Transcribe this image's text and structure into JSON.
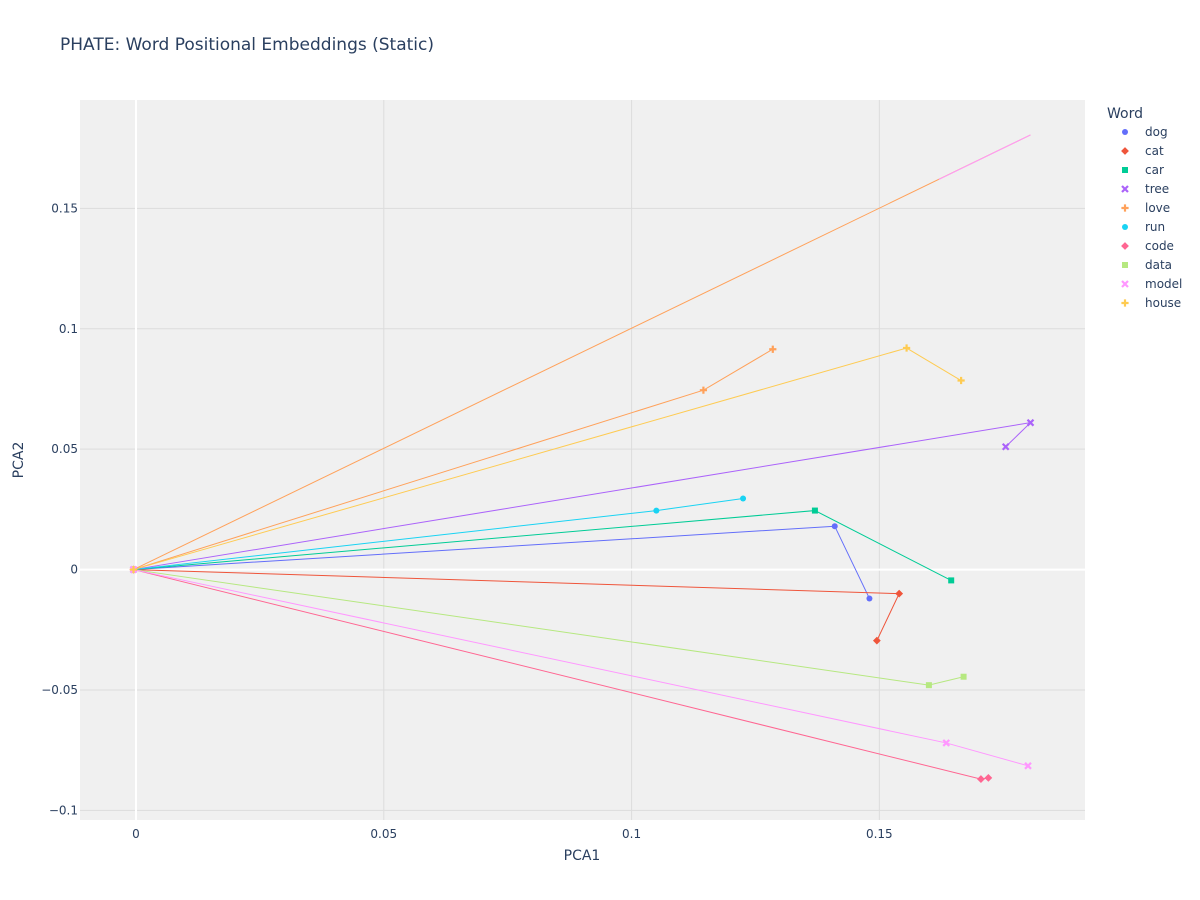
{
  "chart_data": {
    "type": "scatter",
    "title": "PHATE: Word Positional Embeddings (Static)",
    "xlabel": "PCA1",
    "ylabel": "PCA2",
    "xlim": [
      -0.0113,
      0.1915
    ],
    "ylim": [
      -0.104,
      0.195
    ],
    "xticks": [
      0,
      0.05,
      0.1,
      0.15
    ],
    "xtick_labels": [
      "0",
      "0.05",
      "0.1",
      "0.15"
    ],
    "yticks": [
      -0.1,
      -0.05,
      0,
      0.05,
      0.1,
      0.15
    ],
    "ytick_labels": [
      "−0.1",
      "−0.05",
      "0",
      "0.05",
      "0.1",
      "0.15"
    ],
    "grid": true,
    "legend": {
      "title": "Word",
      "placement": "right"
    },
    "series": [
      {
        "name": "dog",
        "color": "#636efa",
        "symbol": "circle",
        "points": [
          [
            -0.0005,
            0
          ],
          [
            0.141,
            0.018
          ],
          [
            0.148,
            -0.012
          ]
        ]
      },
      {
        "name": "cat",
        "color": "#EF553B",
        "symbol": "diamond",
        "points": [
          [
            -0.0005,
            0
          ],
          [
            0.154,
            -0.01
          ],
          [
            0.1495,
            -0.0295
          ]
        ]
      },
      {
        "name": "car",
        "color": "#00cc96",
        "symbol": "square",
        "points": [
          [
            -0.0005,
            0
          ],
          [
            0.137,
            0.0245
          ],
          [
            0.1645,
            -0.0045
          ]
        ]
      },
      {
        "name": "tree",
        "color": "#ab63fa",
        "symbol": "x",
        "points": [
          [
            -0.0005,
            0
          ],
          [
            0.1805,
            0.061
          ],
          [
            0.1755,
            0.051
          ]
        ]
      },
      {
        "name": "love",
        "color": "#FFA15A",
        "symbol": "cross",
        "points": [
          [
            -0.0005,
            0
          ],
          [
            0.1145,
            0.0745
          ],
          [
            0.1285,
            0.0915
          ]
        ]
      },
      {
        "name": "run",
        "color": "#19d3f3",
        "symbol": "circle",
        "points": [
          [
            -0.0005,
            0
          ],
          [
            0.105,
            0.0245
          ],
          [
            0.1225,
            0.0295
          ]
        ]
      },
      {
        "name": "code",
        "color": "#FF6692",
        "symbol": "diamond",
        "points": [
          [
            -0.0005,
            0
          ],
          [
            0.1705,
            -0.087
          ],
          [
            0.172,
            -0.0865
          ]
        ]
      },
      {
        "name": "data",
        "color": "#B6E880",
        "symbol": "square",
        "points": [
          [
            -0.0005,
            0
          ],
          [
            0.16,
            -0.048
          ],
          [
            0.167,
            -0.0445
          ]
        ]
      },
      {
        "name": "model",
        "color": "#FF97FF",
        "symbol": "x",
        "points": [
          [
            -0.0005,
            0
          ],
          [
            0.1635,
            -0.072
          ],
          [
            0.18,
            -0.0815
          ]
        ]
      },
      {
        "name": "house",
        "color": "#FECB52",
        "symbol": "cross",
        "points": [
          [
            -0.0005,
            0
          ],
          [
            0.1555,
            0.092
          ],
          [
            0.1665,
            0.0785
          ]
        ]
      }
    ],
    "extra_lines": [
      {
        "color": "#FFA15A",
        "points": [
          [
            -0.0005,
            0
          ],
          [
            0.1805,
            0.1805
          ]
        ]
      },
      {
        "color": "#FF97FF",
        "points": [
          [
            0.162,
            0.162
          ],
          [
            0.1805,
            0.1805
          ]
        ]
      }
    ]
  }
}
